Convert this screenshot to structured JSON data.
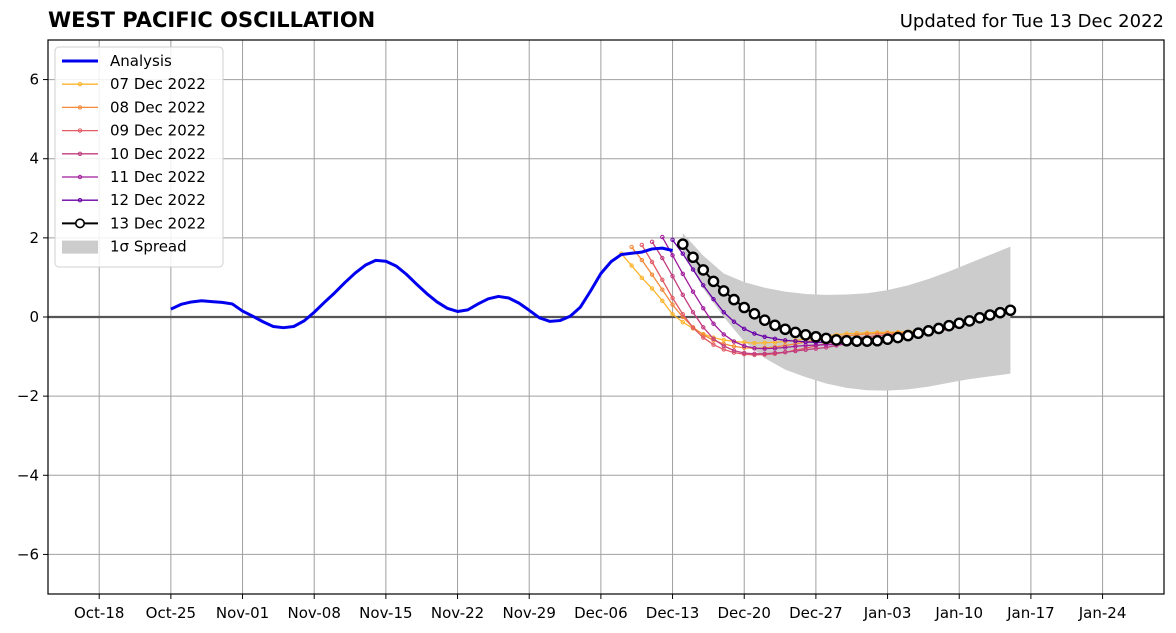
{
  "title": "WEST PACIFIC OSCILLATION",
  "subtitle": "Updated for Tue 13 Dec 2022",
  "chart_data": {
    "type": "line",
    "xlim": [
      "2022-10-13",
      "2023-01-30"
    ],
    "ylim": [
      -7,
      7
    ],
    "x_ticks": [
      "2022-10-18",
      "2022-10-25",
      "2022-11-01",
      "2022-11-08",
      "2022-11-15",
      "2022-11-22",
      "2022-11-29",
      "2022-12-06",
      "2022-12-13",
      "2022-12-20",
      "2022-12-27",
      "2023-01-03",
      "2023-01-10",
      "2023-01-17",
      "2023-01-24"
    ],
    "x_tick_labels": [
      "Oct-18",
      "Oct-25",
      "Nov-01",
      "Nov-08",
      "Nov-15",
      "Nov-22",
      "Nov-29",
      "Dec-06",
      "Dec-13",
      "Dec-20",
      "Dec-27",
      "Jan-03",
      "Jan-10",
      "Jan-17",
      "Jan-24"
    ],
    "y_ticks": [
      -6,
      -4,
      -2,
      0,
      2,
      4,
      6
    ],
    "y_tick_labels": [
      "−6",
      "−4",
      "−2",
      "0",
      "2",
      "4",
      "6"
    ],
    "grid": true,
    "zero_line": true,
    "legend_position": "top-left",
    "analysis": {
      "name": "Analysis",
      "color": "#0000ee",
      "x": [
        "2022-10-25",
        "2022-10-26",
        "2022-10-27",
        "2022-10-28",
        "2022-10-29",
        "2022-10-30",
        "2022-10-31",
        "2022-11-01",
        "2022-11-02",
        "2022-11-03",
        "2022-11-04",
        "2022-11-05",
        "2022-11-06",
        "2022-11-07",
        "2022-11-08",
        "2022-11-09",
        "2022-11-10",
        "2022-11-11",
        "2022-11-12",
        "2022-11-13",
        "2022-11-14",
        "2022-11-15",
        "2022-11-16",
        "2022-11-17",
        "2022-11-18",
        "2022-11-19",
        "2022-11-20",
        "2022-11-21",
        "2022-11-22",
        "2022-11-23",
        "2022-11-24",
        "2022-11-25",
        "2022-11-26",
        "2022-11-27",
        "2022-11-28",
        "2022-11-29",
        "2022-11-30",
        "2022-12-01",
        "2022-12-02",
        "2022-12-03",
        "2022-12-04",
        "2022-12-05",
        "2022-12-06",
        "2022-12-07",
        "2022-12-08",
        "2022-12-09",
        "2022-12-10",
        "2022-12-11",
        "2022-12-12",
        "2022-12-13"
      ],
      "y": [
        0.2,
        0.32,
        0.38,
        0.41,
        0.39,
        0.37,
        0.33,
        0.15,
        0.02,
        -0.12,
        -0.24,
        -0.27,
        -0.24,
        -0.1,
        0.12,
        0.37,
        0.61,
        0.87,
        1.11,
        1.31,
        1.43,
        1.41,
        1.29,
        1.08,
        0.83,
        0.59,
        0.38,
        0.22,
        0.14,
        0.18,
        0.33,
        0.46,
        0.52,
        0.48,
        0.35,
        0.17,
        -0.02,
        -0.11,
        -0.09,
        0.02,
        0.25,
        0.66,
        1.1,
        1.4,
        1.58,
        1.61,
        1.64,
        1.72,
        1.74,
        1.68
      ]
    },
    "forecasts": [
      {
        "name": "07 Dec 2022",
        "color": "#fcb52c",
        "x": [
          "2022-12-08",
          "2022-12-09",
          "2022-12-10",
          "2022-12-11",
          "2022-12-12",
          "2022-12-13",
          "2022-12-14",
          "2022-12-15",
          "2022-12-16",
          "2022-12-17",
          "2022-12-18",
          "2022-12-19",
          "2022-12-20",
          "2022-12-21",
          "2022-12-22",
          "2022-12-23",
          "2022-12-24",
          "2022-12-25",
          "2022-12-26",
          "2022-12-27",
          "2022-12-28",
          "2022-12-29",
          "2022-12-30",
          "2022-12-31",
          "2023-01-01",
          "2023-01-02",
          "2023-01-03",
          "2023-01-04",
          "2023-01-05",
          "2023-01-06"
        ],
        "y": [
          1.6,
          1.3,
          0.99,
          0.72,
          0.41,
          0.07,
          -0.13,
          -0.29,
          -0.43,
          -0.52,
          -0.58,
          -0.62,
          -0.64,
          -0.66,
          -0.65,
          -0.64,
          -0.62,
          -0.59,
          -0.56,
          -0.52,
          -0.48,
          -0.45,
          -0.42,
          -0.41,
          -0.4,
          -0.39,
          -0.39,
          -0.38,
          -0.37,
          -0.35
        ]
      },
      {
        "name": "08 Dec 2022",
        "color": "#f48a3a",
        "x": [
          "2022-12-09",
          "2022-12-10",
          "2022-12-11",
          "2022-12-12",
          "2022-12-13",
          "2022-12-14",
          "2022-12-15",
          "2022-12-16",
          "2022-12-17",
          "2022-12-18",
          "2022-12-19",
          "2022-12-20",
          "2022-12-21",
          "2022-12-22",
          "2022-12-23",
          "2022-12-24",
          "2022-12-25",
          "2022-12-26",
          "2022-12-27",
          "2022-12-28",
          "2022-12-29",
          "2022-12-30",
          "2022-12-31",
          "2023-01-01",
          "2023-01-02",
          "2023-01-03",
          "2023-01-04",
          "2023-01-05",
          "2023-01-06",
          "2023-01-07"
        ],
        "y": [
          1.77,
          1.44,
          1.07,
          0.69,
          0.31,
          0.0,
          -0.26,
          -0.45,
          -0.59,
          -0.68,
          -0.74,
          -0.78,
          -0.79,
          -0.78,
          -0.76,
          -0.72,
          -0.68,
          -0.63,
          -0.58,
          -0.54,
          -0.5,
          -0.47,
          -0.45,
          -0.43,
          -0.42,
          -0.41,
          -0.4,
          -0.4,
          -0.39,
          -0.37
        ]
      },
      {
        "name": "09 Dec 2022",
        "color": "#e15a64",
        "x": [
          "2022-12-10",
          "2022-12-11",
          "2022-12-12",
          "2022-12-13",
          "2022-12-14",
          "2022-12-15",
          "2022-12-16",
          "2022-12-17",
          "2022-12-18",
          "2022-12-19",
          "2022-12-20",
          "2022-12-21",
          "2022-12-22",
          "2022-12-23",
          "2022-12-24",
          "2022-12-25",
          "2022-12-26",
          "2022-12-27",
          "2022-12-28",
          "2022-12-29",
          "2022-12-30",
          "2022-12-31",
          "2023-01-01",
          "2023-01-02",
          "2023-01-03",
          "2023-01-04",
          "2023-01-05",
          "2023-01-06",
          "2023-01-07",
          "2023-01-08"
        ],
        "y": [
          1.82,
          1.39,
          0.94,
          0.48,
          0.07,
          -0.27,
          -0.52,
          -0.7,
          -0.82,
          -0.9,
          -0.94,
          -0.96,
          -0.95,
          -0.93,
          -0.89,
          -0.84,
          -0.79,
          -0.73,
          -0.67,
          -0.62,
          -0.57,
          -0.53,
          -0.5,
          -0.47,
          -0.45,
          -0.43,
          -0.41,
          -0.4,
          -0.38,
          -0.35
        ]
      },
      {
        "name": "10 Dec 2022",
        "color": "#c23d80",
        "x": [
          "2022-12-11",
          "2022-12-12",
          "2022-12-13",
          "2022-12-14",
          "2022-12-15",
          "2022-12-16",
          "2022-12-17",
          "2022-12-18",
          "2022-12-19",
          "2022-12-20",
          "2022-12-21",
          "2022-12-22",
          "2022-12-23",
          "2022-12-24",
          "2022-12-25",
          "2022-12-26",
          "2022-12-27",
          "2022-12-28",
          "2022-12-29",
          "2022-12-30",
          "2022-12-31",
          "2023-01-01",
          "2023-01-02",
          "2023-01-03",
          "2023-01-04",
          "2023-01-05",
          "2023-01-06",
          "2023-01-07",
          "2023-01-08",
          "2023-01-09"
        ],
        "y": [
          1.9,
          1.49,
          1.03,
          0.56,
          0.12,
          -0.26,
          -0.55,
          -0.73,
          -0.85,
          -0.91,
          -0.93,
          -0.93,
          -0.91,
          -0.89,
          -0.86,
          -0.83,
          -0.8,
          -0.77,
          -0.72,
          -0.68,
          -0.63,
          -0.58,
          -0.54,
          -0.5,
          -0.47,
          -0.44,
          -0.41,
          -0.38,
          -0.35,
          -0.31
        ]
      },
      {
        "name": "11 Dec 2022",
        "color": "#a01a9c",
        "x": [
          "2022-12-12",
          "2022-12-13",
          "2022-12-14",
          "2022-12-15",
          "2022-12-16",
          "2022-12-17",
          "2022-12-18",
          "2022-12-19",
          "2022-12-20",
          "2022-12-21",
          "2022-12-22",
          "2022-12-23",
          "2022-12-24",
          "2022-12-25",
          "2022-12-26",
          "2022-12-27",
          "2022-12-28",
          "2022-12-29",
          "2022-12-30",
          "2022-12-31",
          "2023-01-01",
          "2023-01-02",
          "2023-01-03",
          "2023-01-04",
          "2023-01-05",
          "2023-01-06",
          "2023-01-07",
          "2023-01-08",
          "2023-01-09",
          "2023-01-10"
        ],
        "y": [
          2.02,
          1.56,
          1.09,
          0.64,
          0.22,
          -0.17,
          -0.44,
          -0.62,
          -0.73,
          -0.79,
          -0.8,
          -0.79,
          -0.77,
          -0.74,
          -0.72,
          -0.71,
          -0.7,
          -0.69,
          -0.68,
          -0.66,
          -0.63,
          -0.6,
          -0.56,
          -0.52,
          -0.48,
          -0.43,
          -0.38,
          -0.33,
          -0.28,
          -0.23
        ]
      },
      {
        "name": "12 Dec 2022",
        "color": "#6a00a8",
        "x": [
          "2022-12-13",
          "2022-12-14",
          "2022-12-15",
          "2022-12-16",
          "2022-12-17",
          "2022-12-18",
          "2022-12-19",
          "2022-12-20",
          "2022-12-21",
          "2022-12-22",
          "2022-12-23",
          "2022-12-24",
          "2022-12-25",
          "2022-12-26",
          "2022-12-27",
          "2022-12-28",
          "2022-12-29",
          "2022-12-30",
          "2022-12-31",
          "2023-01-01",
          "2023-01-02",
          "2023-01-03",
          "2023-01-04",
          "2023-01-05",
          "2023-01-06",
          "2023-01-07",
          "2023-01-08",
          "2023-01-09",
          "2023-01-10",
          "2023-01-11"
        ],
        "y": [
          1.95,
          1.6,
          1.2,
          0.8,
          0.45,
          0.12,
          -0.12,
          -0.3,
          -0.42,
          -0.5,
          -0.55,
          -0.59,
          -0.61,
          -0.63,
          -0.64,
          -0.64,
          -0.63,
          -0.62,
          -0.6,
          -0.57,
          -0.54,
          -0.5,
          -0.46,
          -0.42,
          -0.37,
          -0.32,
          -0.27,
          -0.21,
          -0.14,
          -0.07
        ]
      },
      {
        "name": "13 Dec 2022",
        "color": "#000000",
        "x": [
          "2022-12-14",
          "2022-12-15",
          "2022-12-16",
          "2022-12-17",
          "2022-12-18",
          "2022-12-19",
          "2022-12-20",
          "2022-12-21",
          "2022-12-22",
          "2022-12-23",
          "2022-12-24",
          "2022-12-25",
          "2022-12-26",
          "2022-12-27",
          "2022-12-28",
          "2022-12-29",
          "2022-12-30",
          "2022-12-31",
          "2023-01-01",
          "2023-01-02",
          "2023-01-03",
          "2023-01-04",
          "2023-01-05",
          "2023-01-06",
          "2023-01-07",
          "2023-01-08",
          "2023-01-09",
          "2023-01-10",
          "2023-01-11",
          "2023-01-12",
          "2023-01-13",
          "2023-01-14",
          "2023-01-15"
        ],
        "y": [
          1.84,
          1.51,
          1.19,
          0.9,
          0.66,
          0.44,
          0.24,
          0.08,
          -0.08,
          -0.21,
          -0.31,
          -0.39,
          -0.45,
          -0.5,
          -0.54,
          -0.58,
          -0.6,
          -0.61,
          -0.61,
          -0.6,
          -0.56,
          -0.52,
          -0.47,
          -0.41,
          -0.35,
          -0.29,
          -0.22,
          -0.16,
          -0.1,
          -0.02,
          0.05,
          0.11,
          0.17
        ]
      }
    ],
    "spread": {
      "name": "1σ Spread",
      "color": "#cccccc",
      "x": [
        "2022-12-14",
        "2022-12-16",
        "2022-12-18",
        "2022-12-20",
        "2022-12-22",
        "2022-12-24",
        "2022-12-26",
        "2022-12-28",
        "2022-12-30",
        "2023-01-01",
        "2023-01-03",
        "2023-01-05",
        "2023-01-07",
        "2023-01-09",
        "2023-01-11",
        "2023-01-13",
        "2023-01-15"
      ],
      "upper": [
        2.12,
        1.55,
        1.1,
        0.88,
        0.74,
        0.64,
        0.58,
        0.56,
        0.57,
        0.6,
        0.68,
        0.8,
        0.96,
        1.15,
        1.36,
        1.57,
        1.78
      ],
      "lower": [
        1.66,
        0.72,
        0.0,
        -0.62,
        -1.04,
        -1.33,
        -1.52,
        -1.68,
        -1.79,
        -1.85,
        -1.86,
        -1.83,
        -1.76,
        -1.66,
        -1.57,
        -1.5,
        -1.43
      ]
    }
  }
}
